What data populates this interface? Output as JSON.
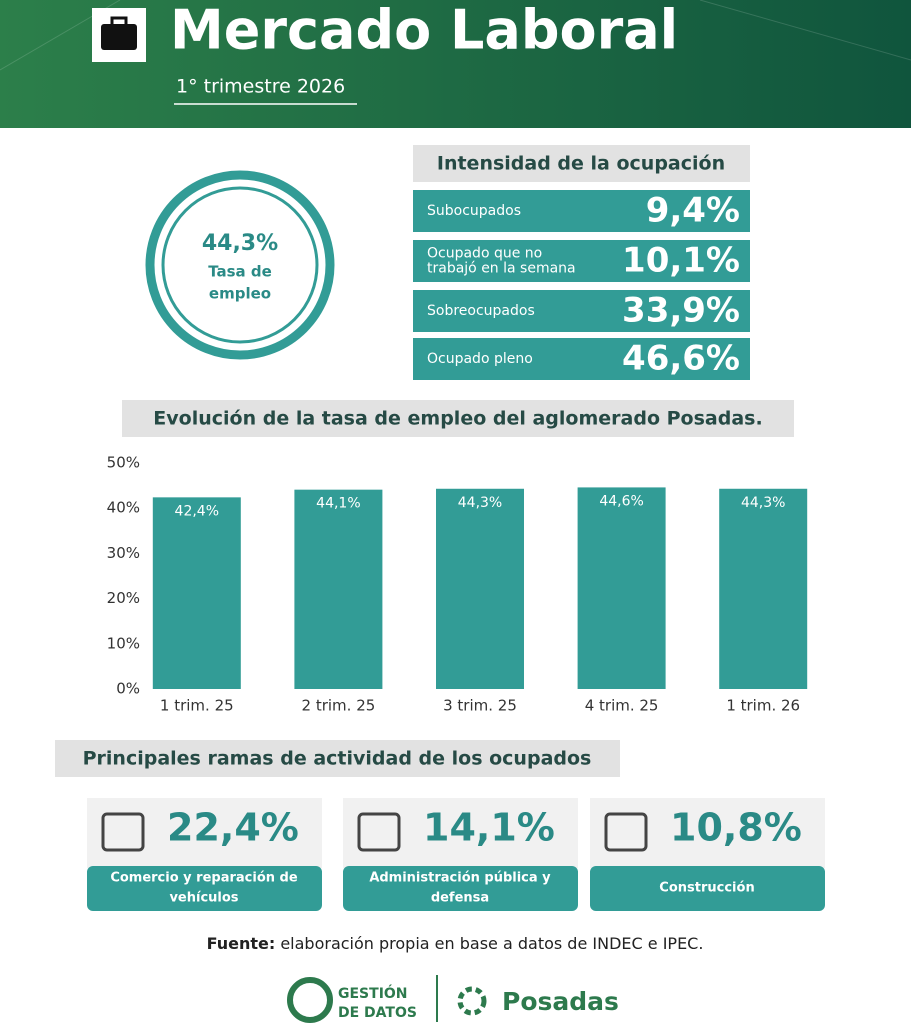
{
  "header": {
    "title": "Mercado Laboral",
    "subtitle": "1° trimestre 2026"
  },
  "employment": {
    "value": "44,3%",
    "label": [
      "Tasa de",
      "empleo"
    ]
  },
  "intensity": {
    "title": "Intensidad de la ocupación",
    "rows": [
      {
        "label": [
          "Subocupados"
        ],
        "value": "9,4%"
      },
      {
        "label": [
          "Ocupado que no",
          "trabajó en la semana"
        ],
        "value": "10,1%"
      },
      {
        "label": [
          "Sobreocupados"
        ],
        "value": "33,9%"
      },
      {
        "label": [
          "Ocupado pleno"
        ],
        "value": "46,6%"
      }
    ]
  },
  "chart_data": {
    "type": "bar",
    "title": "Evolución de la tasa de empleo del aglomerado Posadas.",
    "categories": [
      "1 trim. 25",
      "2 trim. 25",
      "3 trim. 25",
      "4 trim. 25",
      "1 trim. 26"
    ],
    "values": [
      42.4,
      44.1,
      44.3,
      44.6,
      44.3
    ],
    "value_labels": [
      "42,4%",
      "44,1%",
      "44,3%",
      "44,6%",
      "44,3%"
    ],
    "color": "#329c96",
    "ylim": [
      0,
      50
    ],
    "yticks": [
      {
        "value": 0,
        "label": "0%"
      },
      {
        "value": 10,
        "label": "10%"
      },
      {
        "value": 20,
        "label": "20%"
      },
      {
        "value": 30,
        "label": "30%"
      },
      {
        "value": 40,
        "label": "40%"
      },
      {
        "value": 50,
        "label": "50%"
      }
    ],
    "grid": false
  },
  "branches": {
    "title": "Principales ramas de actividad de los ocupados",
    "items": [
      {
        "value": "22,4%",
        "label": [
          "Comercio y reparación de",
          "vehículos"
        ]
      },
      {
        "value": "14,1%",
        "label": [
          "Administración pública y",
          "defensa"
        ]
      },
      {
        "value": "10,8%",
        "label": [
          "Construcción"
        ]
      }
    ]
  },
  "source": {
    "label": "Fuente:",
    "text": "elaboración propia en base a datos de INDEC e IPEC."
  },
  "footer": {
    "logo_lines": [
      "GESTIÓN",
      "DE DATOS"
    ],
    "brand": "Posadas"
  }
}
